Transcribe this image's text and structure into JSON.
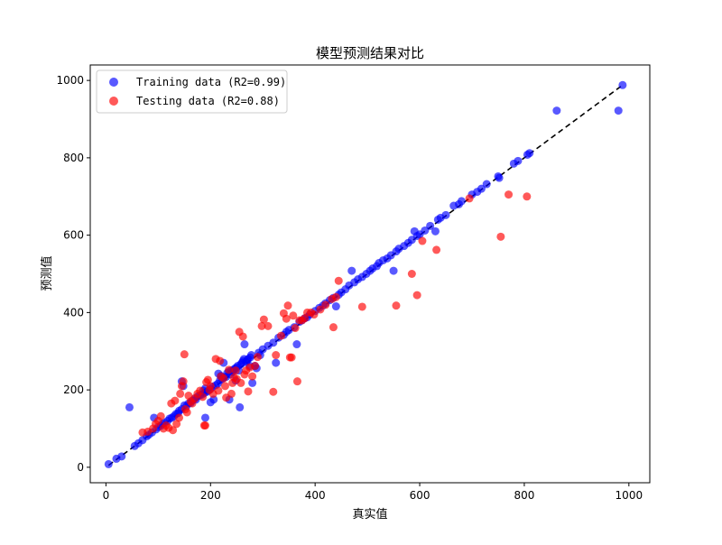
{
  "chart_data": {
    "type": "scatter",
    "title": "模型预测结果对比",
    "xlabel": "真实值",
    "ylabel": "预测值",
    "xlim": [
      -30,
      1040
    ],
    "ylim": [
      -40,
      1040
    ],
    "xticks": [
      0,
      200,
      400,
      600,
      800,
      1000
    ],
    "yticks": [
      0,
      200,
      400,
      600,
      800,
      1000
    ],
    "grid": false,
    "legend_position": "upper-left",
    "reference_line": {
      "style": "dashed",
      "color": "#000000",
      "from": [
        5,
        5
      ],
      "to": [
        990,
        990
      ]
    },
    "series": [
      {
        "name": "Training data (R2=0.99)",
        "color": "#0000ff",
        "alpha": 0.65,
        "points": [
          [
            5,
            8
          ],
          [
            20,
            22
          ],
          [
            30,
            28
          ],
          [
            45,
            155
          ],
          [
            55,
            55
          ],
          [
            62,
            62
          ],
          [
            70,
            70
          ],
          [
            78,
            80
          ],
          [
            82,
            84
          ],
          [
            88,
            90
          ],
          [
            92,
            128
          ],
          [
            96,
            98
          ],
          [
            100,
            104
          ],
          [
            105,
            107
          ],
          [
            108,
            112
          ],
          [
            112,
            115
          ],
          [
            118,
            120
          ],
          [
            122,
            126
          ],
          [
            126,
            128
          ],
          [
            130,
            132
          ],
          [
            134,
            138
          ],
          [
            138,
            140
          ],
          [
            140,
            146
          ],
          [
            145,
            150
          ],
          [
            145,
            222
          ],
          [
            148,
            210
          ],
          [
            150,
            160
          ],
          [
            154,
            158
          ],
          [
            158,
            165
          ],
          [
            162,
            166
          ],
          [
            165,
            172
          ],
          [
            170,
            178
          ],
          [
            172,
            175
          ],
          [
            176,
            184
          ],
          [
            180,
            186
          ],
          [
            184,
            188
          ],
          [
            186,
            198
          ],
          [
            188,
            192
          ],
          [
            190,
            128
          ],
          [
            190,
            204
          ],
          [
            193,
            195
          ],
          [
            196,
            198
          ],
          [
            200,
            202
          ],
          [
            200,
            168
          ],
          [
            204,
            208
          ],
          [
            206,
            175
          ],
          [
            210,
            212
          ],
          [
            214,
            216
          ],
          [
            215,
            242
          ],
          [
            218,
            225
          ],
          [
            220,
            236
          ],
          [
            222,
            228
          ],
          [
            225,
            270
          ],
          [
            226,
            232
          ],
          [
            230,
            234
          ],
          [
            232,
            244
          ],
          [
            235,
            248
          ],
          [
            236,
            175
          ],
          [
            238,
            240
          ],
          [
            240,
            250
          ],
          [
            242,
            246
          ],
          [
            245,
            252
          ],
          [
            246,
            255
          ],
          [
            248,
            224
          ],
          [
            250,
            258
          ],
          [
            252,
            262
          ],
          [
            254,
            250
          ],
          [
            256,
            155
          ],
          [
            258,
            266
          ],
          [
            260,
            270
          ],
          [
            262,
            275
          ],
          [
            264,
            280
          ],
          [
            265,
            318
          ],
          [
            268,
            272
          ],
          [
            270,
            276
          ],
          [
            272,
            280
          ],
          [
            275,
            262
          ],
          [
            276,
            284
          ],
          [
            278,
            290
          ],
          [
            280,
            218
          ],
          [
            285,
            262
          ],
          [
            288,
            256
          ],
          [
            292,
            296
          ],
          [
            295,
            290
          ],
          [
            300,
            305
          ],
          [
            310,
            314
          ],
          [
            320,
            322
          ],
          [
            325,
            270
          ],
          [
            330,
            335
          ],
          [
            340,
            342
          ],
          [
            345,
            350
          ],
          [
            350,
            355
          ],
          [
            360,
            362
          ],
          [
            365,
            318
          ],
          [
            370,
            376
          ],
          [
            375,
            380
          ],
          [
            380,
            385
          ],
          [
            385,
            388
          ],
          [
            390,
            395
          ],
          [
            400,
            404
          ],
          [
            408,
            412
          ],
          [
            415,
            418
          ],
          [
            420,
            424
          ],
          [
            428,
            432
          ],
          [
            435,
            438
          ],
          [
            440,
            416
          ],
          [
            445,
            446
          ],
          [
            450,
            452
          ],
          [
            458,
            460
          ],
          [
            465,
            470
          ],
          [
            470,
            508
          ],
          [
            475,
            478
          ],
          [
            482,
            486
          ],
          [
            490,
            492
          ],
          [
            498,
            500
          ],
          [
            505,
            508
          ],
          [
            510,
            514
          ],
          [
            518,
            520
          ],
          [
            522,
            528
          ],
          [
            530,
            535
          ],
          [
            538,
            540
          ],
          [
            545,
            548
          ],
          [
            550,
            508
          ],
          [
            555,
            558
          ],
          [
            560,
            565
          ],
          [
            570,
            572
          ],
          [
            578,
            580
          ],
          [
            585,
            588
          ],
          [
            590,
            610
          ],
          [
            595,
            598
          ],
          [
            600,
            602
          ],
          [
            610,
            612
          ],
          [
            620,
            624
          ],
          [
            630,
            610
          ],
          [
            635,
            640
          ],
          [
            640,
            645
          ],
          [
            650,
            652
          ],
          [
            665,
            676
          ],
          [
            675,
            680
          ],
          [
            680,
            688
          ],
          [
            700,
            705
          ],
          [
            710,
            712
          ],
          [
            718,
            720
          ],
          [
            728,
            732
          ],
          [
            750,
            752
          ],
          [
            752,
            748
          ],
          [
            780,
            785
          ],
          [
            788,
            792
          ],
          [
            806,
            808
          ],
          [
            810,
            812
          ],
          [
            862,
            922
          ],
          [
            980,
            922
          ],
          [
            988,
            988
          ]
        ]
      },
      {
        "name": "Testing data (R2=0.88)",
        "color": "#ff0000",
        "alpha": 0.65,
        "points": [
          [
            70,
            90
          ],
          [
            80,
            92
          ],
          [
            90,
            100
          ],
          [
            95,
            112
          ],
          [
            100,
            120
          ],
          [
            105,
            132
          ],
          [
            110,
            100
          ],
          [
            115,
            108
          ],
          [
            120,
            102
          ],
          [
            125,
            165
          ],
          [
            128,
            96
          ],
          [
            132,
            172
          ],
          [
            135,
            112
          ],
          [
            140,
            128
          ],
          [
            142,
            190
          ],
          [
            145,
            210
          ],
          [
            148,
            222
          ],
          [
            150,
            292
          ],
          [
            152,
            150
          ],
          [
            155,
            142
          ],
          [
            158,
            185
          ],
          [
            162,
            170
          ],
          [
            165,
            165
          ],
          [
            170,
            178
          ],
          [
            175,
            190
          ],
          [
            180,
            198
          ],
          [
            185,
            182
          ],
          [
            188,
            108
          ],
          [
            190,
            108
          ],
          [
            192,
            220
          ],
          [
            195,
            226
          ],
          [
            198,
            200
          ],
          [
            200,
            210
          ],
          [
            205,
            190
          ],
          [
            210,
            280
          ],
          [
            215,
            198
          ],
          [
            218,
            275
          ],
          [
            220,
            235
          ],
          [
            225,
            230
          ],
          [
            228,
            210
          ],
          [
            230,
            180
          ],
          [
            235,
            252
          ],
          [
            240,
            190
          ],
          [
            242,
            218
          ],
          [
            245,
            232
          ],
          [
            248,
            250
          ],
          [
            250,
            228
          ],
          [
            255,
            350
          ],
          [
            258,
            218
          ],
          [
            262,
            338
          ],
          [
            265,
            240
          ],
          [
            268,
            250
          ],
          [
            272,
            196
          ],
          [
            275,
            258
          ],
          [
            280,
            235
          ],
          [
            285,
            262
          ],
          [
            290,
            285
          ],
          [
            298,
            365
          ],
          [
            302,
            382
          ],
          [
            310,
            365
          ],
          [
            320,
            195
          ],
          [
            325,
            290
          ],
          [
            335,
            340
          ],
          [
            340,
            398
          ],
          [
            345,
            384
          ],
          [
            348,
            418
          ],
          [
            352,
            284
          ],
          [
            355,
            284
          ],
          [
            358,
            392
          ],
          [
            362,
            360
          ],
          [
            366,
            222
          ],
          [
            370,
            380
          ],
          [
            375,
            380
          ],
          [
            380,
            385
          ],
          [
            385,
            400
          ],
          [
            392,
            400
          ],
          [
            398,
            395
          ],
          [
            410,
            408
          ],
          [
            420,
            420
          ],
          [
            432,
            435
          ],
          [
            435,
            362
          ],
          [
            440,
            440
          ],
          [
            445,
            482
          ],
          [
            490,
            415
          ],
          [
            555,
            418
          ],
          [
            585,
            500
          ],
          [
            595,
            445
          ],
          [
            605,
            585
          ],
          [
            632,
            562
          ],
          [
            695,
            695
          ],
          [
            755,
            596
          ],
          [
            770,
            705
          ],
          [
            805,
            700
          ]
        ]
      }
    ]
  }
}
